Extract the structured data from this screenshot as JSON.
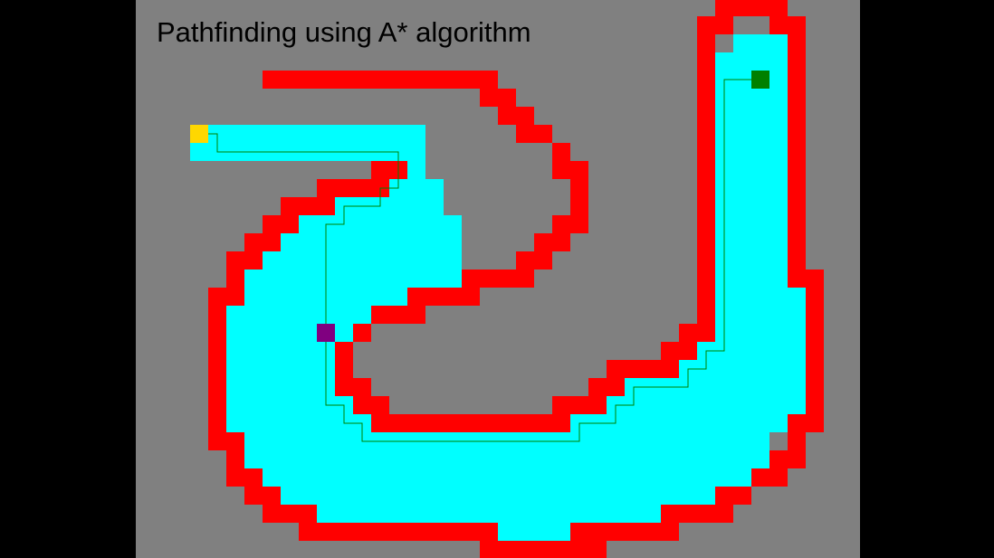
{
  "title": "Pathfinding using A* algorithm",
  "colors": {
    "frame": "#000000",
    "background": "#808080",
    "wall": "#ff0000",
    "explored": "#00ffff",
    "path": "#008000",
    "start": "#ffd700",
    "goal": "#008000",
    "agent": "#800080"
  },
  "grid": {
    "cols": 40,
    "rows": 31,
    "wall_rows": [
      [
        0,
        [
          [
            32,
            35
          ]
        ]
      ],
      [
        1,
        [
          [
            31,
            32
          ],
          [
            35,
            36
          ]
        ]
      ],
      [
        2,
        [
          [
            31,
            31
          ],
          [
            36,
            36
          ]
        ]
      ],
      [
        3,
        [
          [
            31,
            31
          ],
          [
            36,
            36
          ]
        ]
      ],
      [
        4,
        [
          [
            7,
            19
          ],
          [
            31,
            31
          ],
          [
            36,
            36
          ]
        ]
      ],
      [
        5,
        [
          [
            19,
            20
          ],
          [
            31,
            31
          ],
          [
            36,
            36
          ]
        ]
      ],
      [
        6,
        [
          [
            20,
            21
          ],
          [
            31,
            31
          ],
          [
            36,
            36
          ]
        ]
      ],
      [
        7,
        [
          [
            21,
            22
          ],
          [
            31,
            31
          ],
          [
            36,
            36
          ]
        ]
      ],
      [
        8,
        [
          [
            23,
            23
          ],
          [
            31,
            31
          ],
          [
            36,
            36
          ]
        ]
      ],
      [
        9,
        [
          [
            13,
            14
          ],
          [
            23,
            24
          ],
          [
            31,
            31
          ],
          [
            36,
            36
          ]
        ]
      ],
      [
        10,
        [
          [
            10,
            13
          ],
          [
            24,
            24
          ],
          [
            31,
            31
          ],
          [
            36,
            36
          ]
        ]
      ],
      [
        11,
        [
          [
            8,
            10
          ],
          [
            24,
            24
          ],
          [
            31,
            31
          ],
          [
            36,
            36
          ]
        ]
      ],
      [
        12,
        [
          [
            7,
            8
          ],
          [
            23,
            24
          ],
          [
            31,
            31
          ],
          [
            36,
            36
          ]
        ]
      ],
      [
        13,
        [
          [
            6,
            7
          ],
          [
            22,
            23
          ],
          [
            31,
            31
          ],
          [
            36,
            36
          ]
        ]
      ],
      [
        14,
        [
          [
            5,
            6
          ],
          [
            21,
            22
          ],
          [
            31,
            31
          ],
          [
            36,
            36
          ]
        ]
      ],
      [
        15,
        [
          [
            5,
            5
          ],
          [
            18,
            21
          ],
          [
            31,
            31
          ],
          [
            36,
            37
          ]
        ]
      ],
      [
        16,
        [
          [
            4,
            5
          ],
          [
            15,
            18
          ],
          [
            31,
            31
          ],
          [
            37,
            37
          ]
        ]
      ],
      [
        17,
        [
          [
            4,
            4
          ],
          [
            13,
            15
          ],
          [
            31,
            31
          ],
          [
            37,
            37
          ]
        ]
      ],
      [
        18,
        [
          [
            4,
            4
          ],
          [
            12,
            12
          ],
          [
            30,
            31
          ],
          [
            37,
            37
          ]
        ]
      ],
      [
        19,
        [
          [
            4,
            4
          ],
          [
            11,
            11
          ],
          [
            29,
            30
          ],
          [
            37,
            37
          ]
        ]
      ],
      [
        20,
        [
          [
            4,
            4
          ],
          [
            11,
            11
          ],
          [
            26,
            29
          ],
          [
            37,
            37
          ]
        ]
      ],
      [
        21,
        [
          [
            4,
            4
          ],
          [
            11,
            12
          ],
          [
            25,
            26
          ],
          [
            37,
            37
          ]
        ]
      ],
      [
        22,
        [
          [
            4,
            4
          ],
          [
            12,
            13
          ],
          [
            23,
            25
          ],
          [
            37,
            37
          ]
        ]
      ],
      [
        23,
        [
          [
            4,
            4
          ],
          [
            13,
            23
          ],
          [
            36,
            37
          ]
        ]
      ],
      [
        24,
        [
          [
            4,
            5
          ],
          [
            36,
            36
          ]
        ]
      ],
      [
        25,
        [
          [
            5,
            5
          ],
          [
            35,
            36
          ]
        ]
      ],
      [
        26,
        [
          [
            5,
            6
          ],
          [
            34,
            35
          ]
        ]
      ],
      [
        27,
        [
          [
            6,
            7
          ],
          [
            32,
            33
          ]
        ]
      ],
      [
        28,
        [
          [
            7,
            9
          ],
          [
            29,
            32
          ]
        ]
      ],
      [
        29,
        [
          [
            9,
            19
          ],
          [
            24,
            29
          ]
        ]
      ],
      [
        30,
        [
          [
            19,
            25
          ]
        ]
      ]
    ],
    "explored_rows": [
      [
        2,
        [
          [
            33,
            35
          ]
        ]
      ],
      [
        3,
        [
          [
            32,
            35
          ]
        ]
      ],
      [
        4,
        [
          [
            32,
            35
          ]
        ]
      ],
      [
        5,
        [
          [
            32,
            35
          ]
        ]
      ],
      [
        6,
        [
          [
            32,
            35
          ]
        ]
      ],
      [
        7,
        [
          [
            3,
            15
          ],
          [
            32,
            35
          ]
        ]
      ],
      [
        8,
        [
          [
            3,
            15
          ],
          [
            32,
            35
          ]
        ]
      ],
      [
        9,
        [
          [
            15,
            15
          ],
          [
            32,
            35
          ]
        ]
      ],
      [
        10,
        [
          [
            14,
            16
          ],
          [
            32,
            35
          ]
        ]
      ],
      [
        11,
        [
          [
            11,
            16
          ],
          [
            32,
            35
          ]
        ]
      ],
      [
        12,
        [
          [
            9,
            17
          ],
          [
            32,
            35
          ]
        ]
      ],
      [
        13,
        [
          [
            8,
            17
          ],
          [
            32,
            35
          ]
        ]
      ],
      [
        14,
        [
          [
            7,
            17
          ],
          [
            32,
            35
          ]
        ]
      ],
      [
        15,
        [
          [
            6,
            17
          ],
          [
            32,
            35
          ]
        ]
      ],
      [
        16,
        [
          [
            6,
            14
          ],
          [
            32,
            36
          ]
        ]
      ],
      [
        17,
        [
          [
            5,
            12
          ],
          [
            32,
            36
          ]
        ]
      ],
      [
        18,
        [
          [
            5,
            11
          ],
          [
            32,
            36
          ]
        ]
      ],
      [
        19,
        [
          [
            5,
            10
          ],
          [
            31,
            36
          ]
        ]
      ],
      [
        20,
        [
          [
            5,
            10
          ],
          [
            30,
            36
          ]
        ]
      ],
      [
        21,
        [
          [
            5,
            10
          ],
          [
            27,
            36
          ]
        ]
      ],
      [
        22,
        [
          [
            5,
            11
          ],
          [
            26,
            36
          ]
        ]
      ],
      [
        23,
        [
          [
            5,
            12
          ],
          [
            24,
            35
          ]
        ]
      ],
      [
        24,
        [
          [
            6,
            34
          ]
        ]
      ],
      [
        25,
        [
          [
            6,
            34
          ]
        ]
      ],
      [
        26,
        [
          [
            7,
            33
          ]
        ]
      ],
      [
        27,
        [
          [
            8,
            31
          ]
        ]
      ],
      [
        28,
        [
          [
            10,
            28
          ]
        ]
      ],
      [
        29,
        [
          [
            20,
            23
          ]
        ]
      ]
    ],
    "path_points": [
      [
        3.5,
        7.5
      ],
      [
        4.5,
        7.5
      ],
      [
        4.5,
        8.5
      ],
      [
        14.5,
        8.5
      ],
      [
        14.5,
        10.5
      ],
      [
        13.5,
        10.5
      ],
      [
        13.5,
        11.5
      ],
      [
        11.5,
        11.5
      ],
      [
        11.5,
        12.5
      ],
      [
        10.5,
        12.5
      ],
      [
        10.5,
        22.5
      ],
      [
        11.5,
        22.5
      ],
      [
        11.5,
        23.5
      ],
      [
        12.5,
        23.5
      ],
      [
        12.5,
        24.5
      ],
      [
        24.5,
        24.5
      ],
      [
        24.5,
        23.5
      ],
      [
        26.5,
        23.5
      ],
      [
        26.5,
        22.5
      ],
      [
        27.5,
        22.5
      ],
      [
        27.5,
        21.5
      ],
      [
        30.5,
        21.5
      ],
      [
        30.5,
        20.5
      ],
      [
        31.5,
        20.5
      ],
      [
        31.5,
        19.5
      ],
      [
        32.5,
        19.5
      ],
      [
        32.5,
        4.5
      ],
      [
        34.5,
        4.5
      ]
    ],
    "start_cell": [
      3,
      7
    ],
    "goal_cell": [
      34,
      4
    ],
    "agent_cell": [
      10,
      18
    ]
  }
}
